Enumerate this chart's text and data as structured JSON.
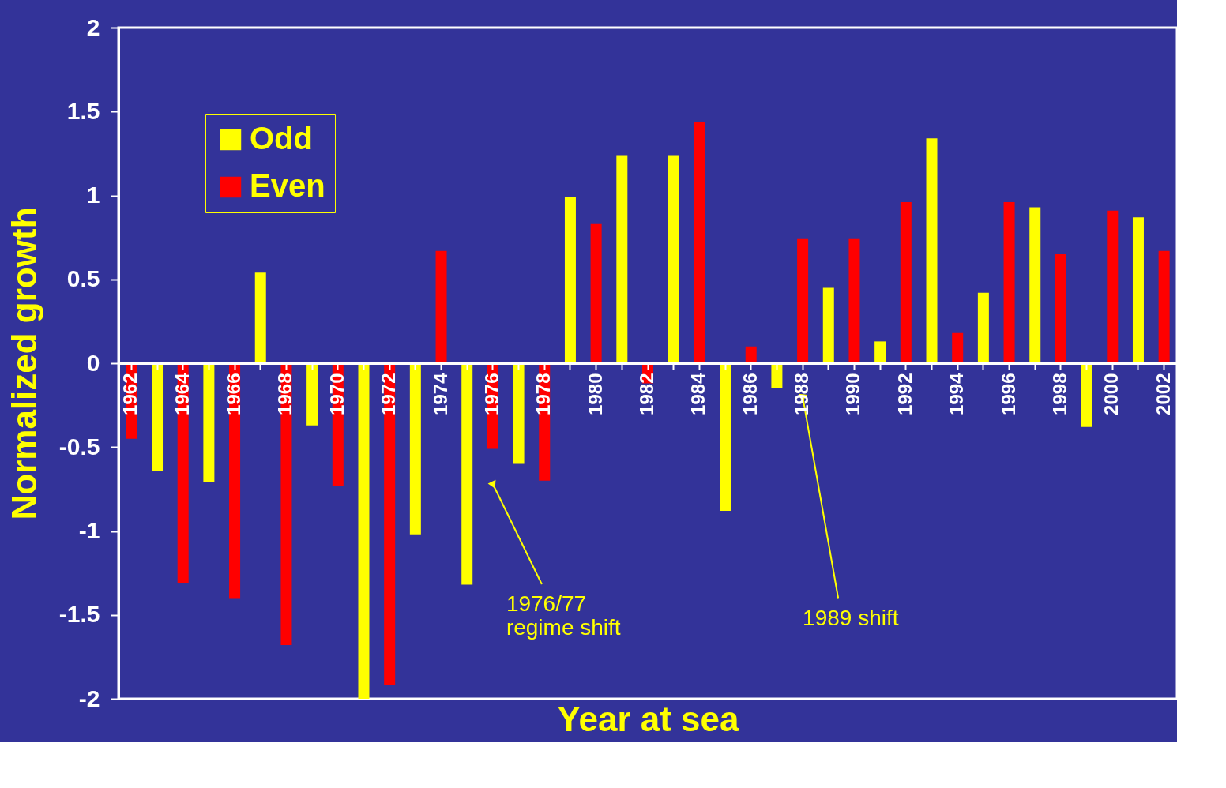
{
  "chart_data": {
    "type": "bar",
    "xlabel": "Year at sea",
    "ylabel": "Normalized growth",
    "categories": [
      "1962",
      null,
      "1964",
      null,
      "1966",
      null,
      "1968",
      null,
      "1970",
      null,
      "1972",
      null,
      "1974",
      null,
      "1976",
      null,
      "1978",
      null,
      "1980",
      null,
      "1982",
      null,
      "1984",
      null,
      "1986",
      null,
      "1988",
      null,
      "1990",
      null,
      "1992",
      null,
      "1994",
      null,
      "1996",
      null,
      "1998",
      null,
      "2000",
      null,
      "2002"
    ],
    "series": [
      {
        "name": "Odd",
        "color": "#ffff00",
        "values": [
          null,
          -0.64,
          null,
          -0.71,
          null,
          0.54,
          null,
          -0.37,
          null,
          -2.0,
          null,
          -1.02,
          null,
          -1.32,
          null,
          -0.6,
          null,
          0.99,
          null,
          1.24,
          null,
          1.24,
          null,
          -0.88,
          null,
          -0.15,
          null,
          0.45,
          null,
          0.13,
          null,
          1.34,
          null,
          0.42,
          null,
          0.93,
          null,
          -0.38,
          null,
          0.87,
          null
        ]
      },
      {
        "name": "Even",
        "color": "#ff0000",
        "values": [
          -0.45,
          null,
          -1.31,
          null,
          -1.4,
          null,
          -1.68,
          null,
          -0.73,
          null,
          -1.92,
          null,
          0.67,
          null,
          -0.51,
          null,
          -0.7,
          null,
          0.83,
          null,
          -0.12,
          null,
          1.44,
          null,
          0.1,
          null,
          0.74,
          null,
          0.74,
          null,
          0.96,
          null,
          0.18,
          null,
          0.96,
          null,
          0.65,
          null,
          0.91,
          null,
          0.67
        ]
      }
    ],
    "ylim": [
      -2,
      2
    ],
    "yticks": [
      -2,
      -1.5,
      -1,
      -0.5,
      0,
      0.5,
      1,
      1.5,
      2
    ],
    "grid": false,
    "legend": "top left",
    "annotations": [
      {
        "text": "1976/77\nregime shift",
        "x": "1976",
        "y": -0.72
      },
      {
        "text": "1989 shift",
        "x": "1988",
        "y": -0.2
      }
    ]
  }
}
